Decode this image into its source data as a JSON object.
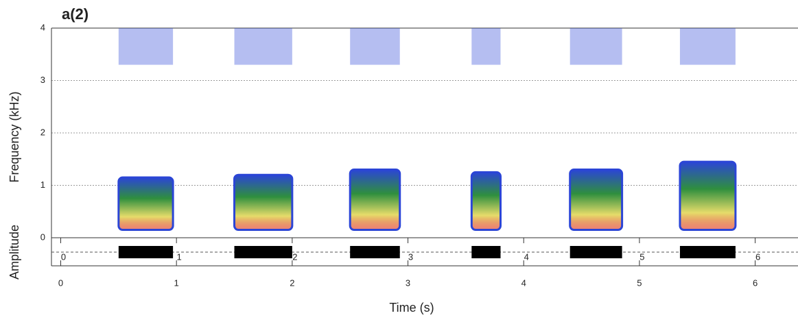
{
  "chart_data": {
    "type": "spectrogram",
    "title": "a(2)",
    "x_label": "Time (s)",
    "y_label": "Frequency (kHz)",
    "amplitude_label": "Amplitude",
    "xlim": [
      -0.08,
      6.37
    ],
    "xticks": [
      0,
      1,
      2,
      3,
      4,
      5,
      6
    ],
    "ylim": [
      0,
      4
    ],
    "yticks": [
      0,
      1,
      2,
      3,
      4
    ],
    "grid": true,
    "colormap": [
      "#2b45d6",
      "#2f8f3e",
      "#e6dc6a",
      "#e0301e"
    ],
    "noise_band": [
      3.3,
      4
    ],
    "calls": [
      {
        "start": 0.5,
        "end": 0.97,
        "fmin": 0.15,
        "fmax": 1.15
      },
      {
        "start": 1.5,
        "end": 2.0,
        "fmin": 0.15,
        "fmax": 1.2
      },
      {
        "start": 2.5,
        "end": 2.93,
        "fmin": 0.15,
        "fmax": 1.3
      },
      {
        "start": 3.55,
        "end": 3.8,
        "fmin": 0.15,
        "fmax": 1.25
      },
      {
        "start": 4.4,
        "end": 4.85,
        "fmin": 0.15,
        "fmax": 1.3
      },
      {
        "start": 5.35,
        "end": 5.83,
        "fmin": 0.15,
        "fmax": 1.45
      }
    ]
  }
}
